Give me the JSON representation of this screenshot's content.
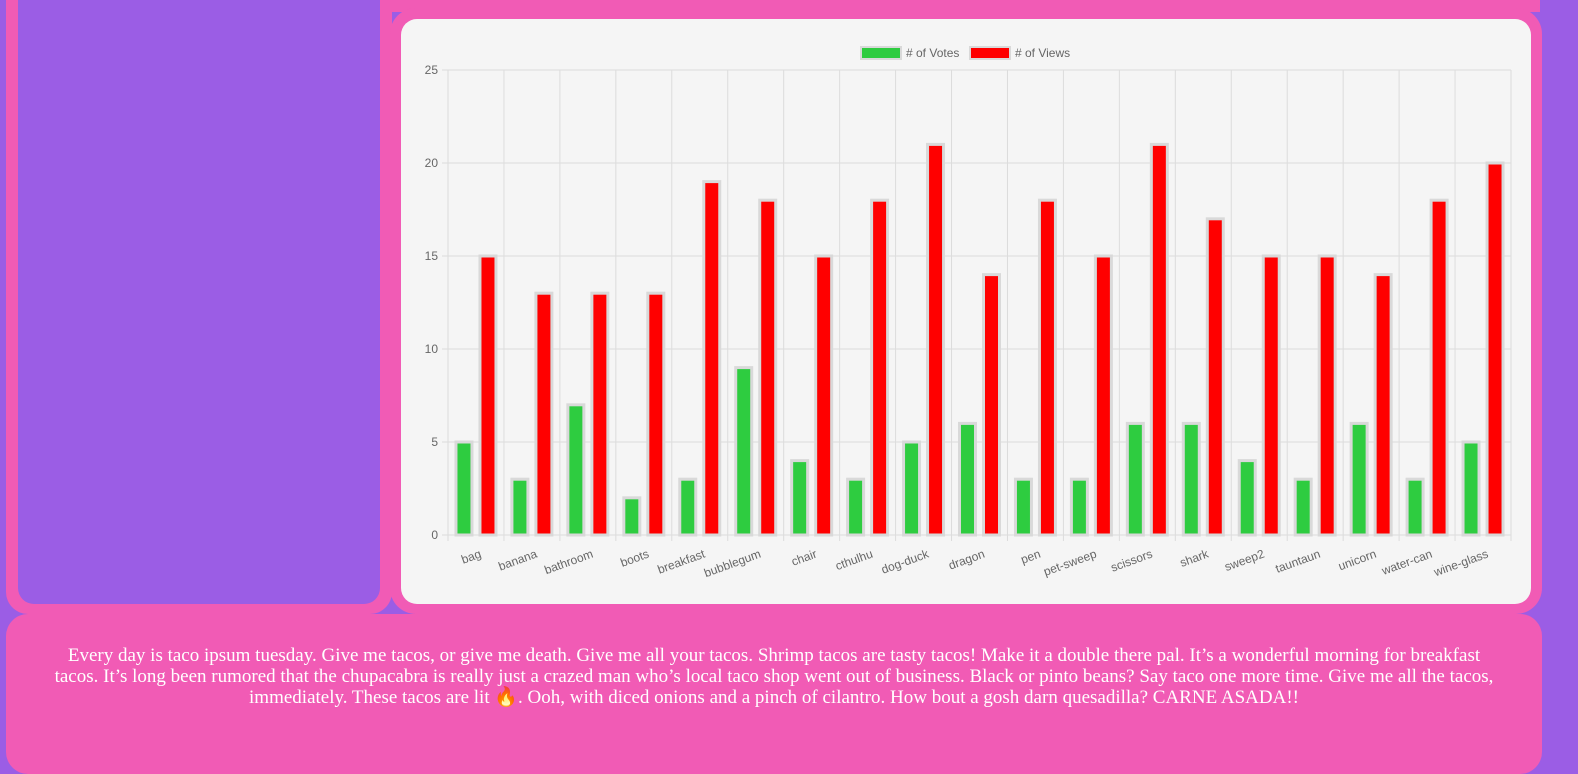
{
  "footer": {
    "text": "Every day is taco ipsum tuesday. Give me tacos, or give me death. Give me all your tacos. Shrimp tacos are tasty tacos! Make it a double there pal. It’s a wonderful morning for breakfast tacos. It’s long been rumored that the chupacabra is really just a crazed man who’s local taco shop went out of business. Black or pinto beans? Say taco one more time. Give me all the tacos, immediately. These tacos are lit 🔥. Ooh, with diced onions and a pinch of cilantro. How bout a gosh darn quesadilla? CARNE ASADA!!"
  },
  "colors": {
    "page_background": "#9b5de5",
    "frame": "#f15bb5",
    "chart_background": "#f5f5f5",
    "votes": "#2ecc40",
    "views": "#ff0000"
  },
  "chart_data": {
    "type": "bar",
    "categories": [
      "bag",
      "banana",
      "bathroom",
      "boots",
      "breakfast",
      "bubblegum",
      "chair",
      "cthulhu",
      "dog-duck",
      "dragon",
      "pen",
      "pet-sweep",
      "scissors",
      "shark",
      "sweep2",
      "tauntaun",
      "unicorn",
      "water-can",
      "wine-glass"
    ],
    "series": [
      {
        "name": "# of Votes",
        "color": "#2ecc40",
        "values": [
          5,
          3,
          7,
          2,
          3,
          9,
          4,
          3,
          5,
          6,
          3,
          3,
          6,
          6,
          4,
          3,
          6,
          3,
          5
        ]
      },
      {
        "name": "# of Views",
        "color": "#ff0000",
        "values": [
          15,
          13,
          13,
          13,
          19,
          18,
          15,
          18,
          21,
          14,
          18,
          15,
          21,
          17,
          15,
          15,
          14,
          18,
          20
        ]
      }
    ],
    "yticks": [
      "0",
      "5",
      "10",
      "15",
      "20",
      "25"
    ],
    "ylim": [
      0,
      25
    ],
    "grid": true,
    "legend": "top-center"
  }
}
